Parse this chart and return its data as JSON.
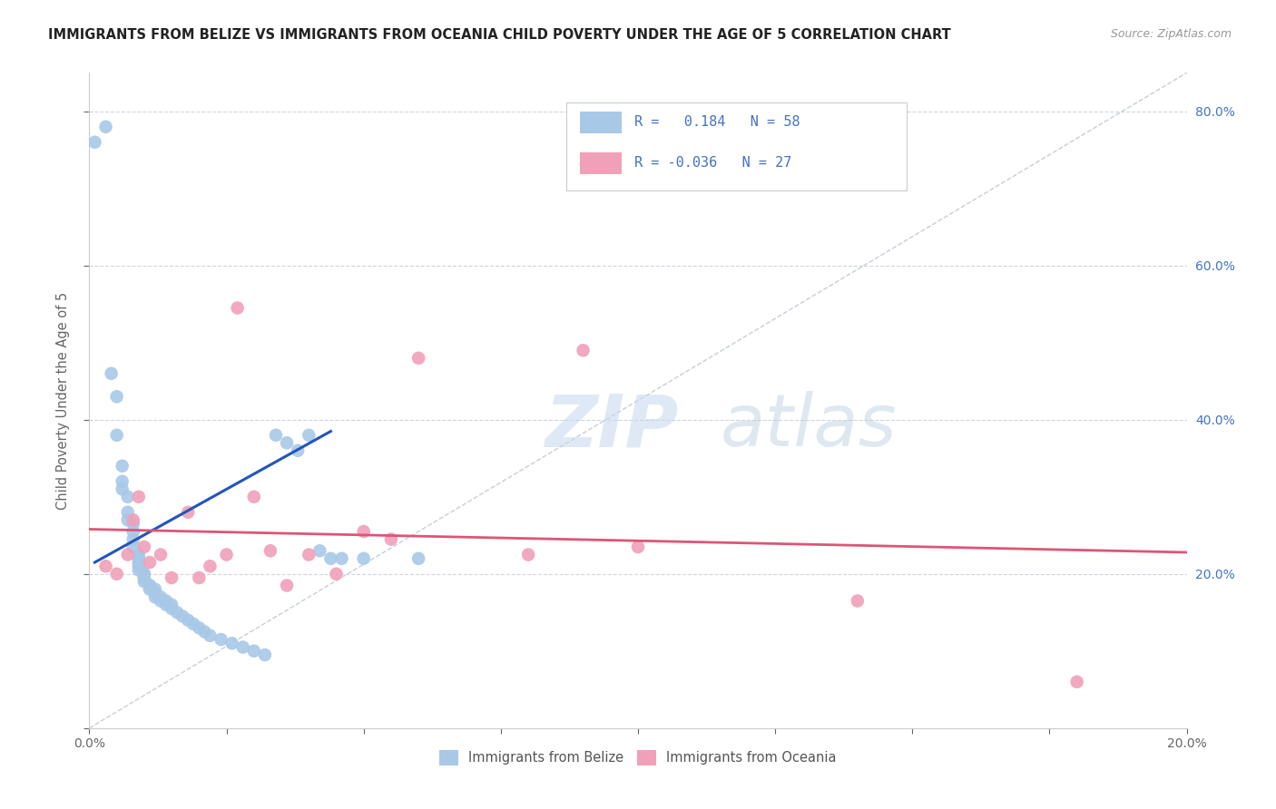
{
  "title": "IMMIGRANTS FROM BELIZE VS IMMIGRANTS FROM OCEANIA CHILD POVERTY UNDER THE AGE OF 5 CORRELATION CHART",
  "source": "Source: ZipAtlas.com",
  "ylabel": "Child Poverty Under the Age of 5",
  "xlim": [
    0.0,
    0.2
  ],
  "ylim": [
    0.0,
    0.85
  ],
  "belize_color": "#a8c8e8",
  "oceania_color": "#f0a0b8",
  "belize_line_color": "#2255bb",
  "oceania_line_color": "#dd5577",
  "diagonal_color": "#c0c8d8",
  "R_belize": 0.184,
  "N_belize": 58,
  "R_oceania": -0.036,
  "N_oceania": 27,
  "belize_x": [
    0.001,
    0.003,
    0.004,
    0.005,
    0.005,
    0.006,
    0.006,
    0.006,
    0.007,
    0.007,
    0.007,
    0.008,
    0.008,
    0.008,
    0.008,
    0.009,
    0.009,
    0.009,
    0.009,
    0.009,
    0.01,
    0.01,
    0.01,
    0.01,
    0.01,
    0.011,
    0.011,
    0.011,
    0.012,
    0.012,
    0.012,
    0.013,
    0.013,
    0.014,
    0.014,
    0.015,
    0.015,
    0.016,
    0.017,
    0.018,
    0.019,
    0.02,
    0.021,
    0.022,
    0.024,
    0.026,
    0.028,
    0.03,
    0.032,
    0.034,
    0.036,
    0.038,
    0.04,
    0.042,
    0.044,
    0.046,
    0.05,
    0.06
  ],
  "belize_y": [
    0.76,
    0.78,
    0.46,
    0.43,
    0.38,
    0.34,
    0.32,
    0.31,
    0.3,
    0.28,
    0.27,
    0.265,
    0.255,
    0.245,
    0.235,
    0.225,
    0.22,
    0.215,
    0.21,
    0.205,
    0.2,
    0.2,
    0.195,
    0.195,
    0.19,
    0.185,
    0.185,
    0.18,
    0.18,
    0.175,
    0.17,
    0.17,
    0.165,
    0.165,
    0.16,
    0.16,
    0.155,
    0.15,
    0.145,
    0.14,
    0.135,
    0.13,
    0.125,
    0.12,
    0.115,
    0.11,
    0.105,
    0.1,
    0.095,
    0.38,
    0.37,
    0.36,
    0.38,
    0.23,
    0.22,
    0.22,
    0.22,
    0.22
  ],
  "oceania_x": [
    0.003,
    0.005,
    0.007,
    0.008,
    0.009,
    0.01,
    0.011,
    0.013,
    0.015,
    0.018,
    0.02,
    0.022,
    0.025,
    0.027,
    0.03,
    0.033,
    0.036,
    0.04,
    0.045,
    0.05,
    0.055,
    0.06,
    0.08,
    0.09,
    0.1,
    0.14,
    0.18
  ],
  "oceania_y": [
    0.21,
    0.2,
    0.225,
    0.27,
    0.3,
    0.235,
    0.215,
    0.225,
    0.195,
    0.28,
    0.195,
    0.21,
    0.225,
    0.545,
    0.3,
    0.23,
    0.185,
    0.225,
    0.2,
    0.255,
    0.245,
    0.48,
    0.225,
    0.49,
    0.235,
    0.165,
    0.06
  ],
  "watermark_zip": "ZIP",
  "watermark_atlas": "atlas",
  "background_color": "#ffffff",
  "grid_color": "#d0d4e4"
}
